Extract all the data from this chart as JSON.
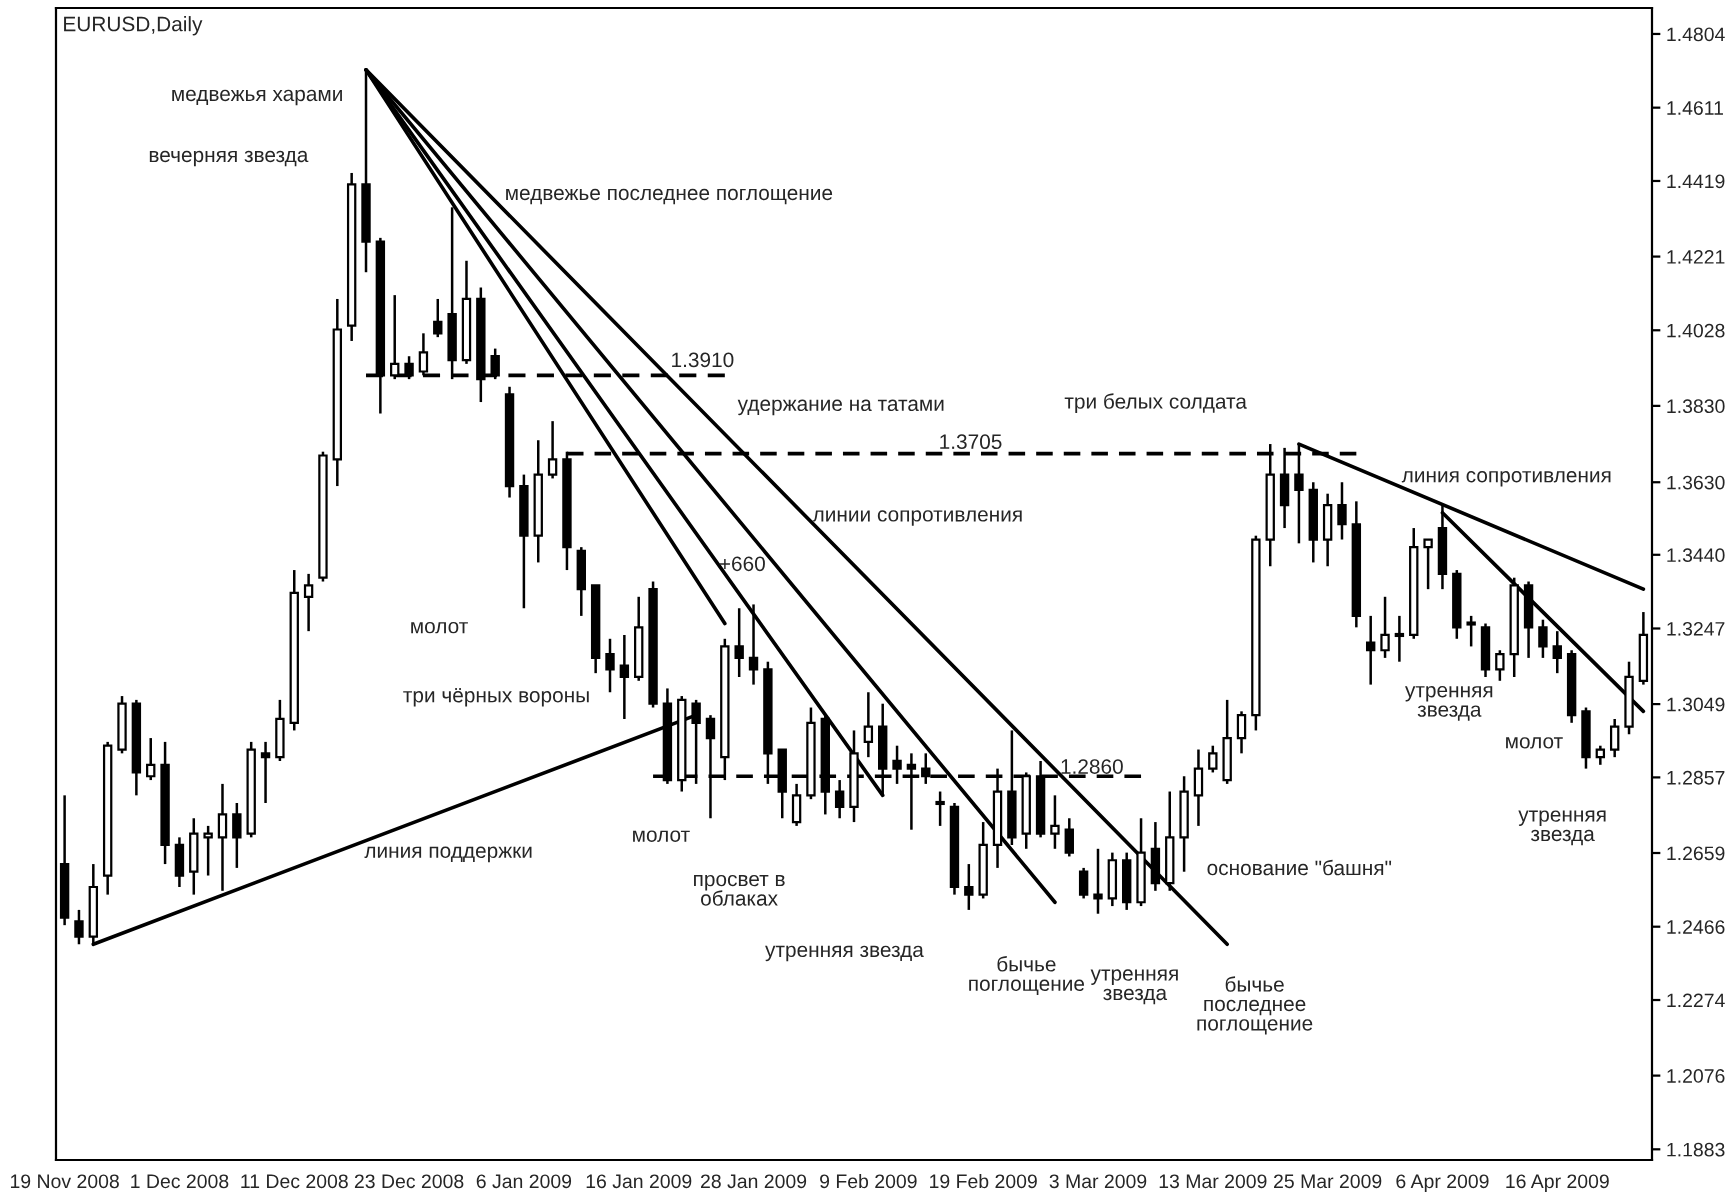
{
  "chart_data": {
    "type": "candlestick",
    "title": "EURUSD,Daily",
    "categories": [
      "19 Nov 2008",
      null,
      null,
      null,
      null,
      null,
      null,
      null,
      "1 Dec 2008",
      null,
      null,
      null,
      null,
      null,
      null,
      null,
      "11 Dec 2008",
      null,
      null,
      null,
      null,
      null,
      null,
      null,
      "23 Dec 2008",
      null,
      null,
      null,
      null,
      null,
      null,
      null,
      "6 Jan 2009",
      null,
      null,
      null,
      null,
      null,
      null,
      null,
      "16 Jan 2009",
      null,
      null,
      null,
      null,
      null,
      null,
      null,
      "28 Jan 2009",
      null,
      null,
      null,
      null,
      null,
      null,
      null,
      "9 Feb 2009",
      null,
      null,
      null,
      null,
      null,
      null,
      null,
      "19 Feb 2009",
      null,
      null,
      null,
      null,
      null,
      null,
      null,
      "3 Mar 2009",
      null,
      null,
      null,
      null,
      null,
      null,
      null,
      "13 Mar 2009",
      null,
      null,
      null,
      null,
      null,
      null,
      null,
      "25 Mar 2009",
      null,
      null,
      null,
      null,
      null,
      null,
      null,
      "6 Apr 2009",
      null,
      null,
      null,
      null,
      null,
      null,
      null,
      "16 Apr 2009",
      null,
      null,
      null,
      null,
      null,
      null
    ],
    "ohlc": [
      [
        1.263,
        1.281,
        1.247,
        1.249
      ],
      [
        1.248,
        1.251,
        1.242,
        1.244
      ],
      [
        1.244,
        1.263,
        1.242,
        1.257
      ],
      [
        1.26,
        1.295,
        1.255,
        1.294
      ],
      [
        1.293,
        1.307,
        1.292,
        1.305
      ],
      [
        1.305,
        1.306,
        1.281,
        1.287
      ],
      [
        1.286,
        1.296,
        1.285,
        1.289
      ],
      [
        1.289,
        1.295,
        1.263,
        1.268
      ],
      [
        1.268,
        1.27,
        1.257,
        1.26
      ],
      [
        1.261,
        1.275,
        1.255,
        1.271
      ],
      [
        1.27,
        1.273,
        1.26,
        1.271
      ],
      [
        1.27,
        1.284,
        1.256,
        1.276
      ],
      [
        1.276,
        1.279,
        1.262,
        1.27
      ],
      [
        1.271,
        1.295,
        1.27,
        1.293
      ],
      [
        1.292,
        1.295,
        1.279,
        1.291
      ],
      [
        1.291,
        1.306,
        1.29,
        1.301
      ],
      [
        1.3,
        1.34,
        1.298,
        1.334
      ],
      [
        1.333,
        1.339,
        1.324,
        1.336
      ],
      [
        1.338,
        1.371,
        1.337,
        1.37
      ],
      [
        1.369,
        1.411,
        1.362,
        1.403
      ],
      [
        1.404,
        1.444,
        1.4,
        1.441
      ],
      [
        1.441,
        1.471,
        1.418,
        1.426
      ],
      [
        1.426,
        1.427,
        1.381,
        1.391
      ],
      [
        1.391,
        1.412,
        1.39,
        1.394
      ],
      [
        1.394,
        1.396,
        1.39,
        1.391
      ],
      [
        1.392,
        1.402,
        1.391,
        1.397
      ],
      [
        1.405,
        1.411,
        1.401,
        1.402
      ],
      [
        1.407,
        1.435,
        1.39,
        1.395
      ],
      [
        1.395,
        1.421,
        1.394,
        1.411
      ],
      [
        1.411,
        1.414,
        1.384,
        1.39
      ],
      [
        1.396,
        1.398,
        1.39,
        1.391
      ],
      [
        1.386,
        1.388,
        1.359,
        1.362
      ],
      [
        1.362,
        1.365,
        1.33,
        1.349
      ],
      [
        1.349,
        1.374,
        1.342,
        1.365
      ],
      [
        1.365,
        1.379,
        1.364,
        1.369
      ],
      [
        1.369,
        1.371,
        1.34,
        1.346
      ],
      [
        1.345,
        1.346,
        1.328,
        1.335
      ],
      [
        1.336,
        1.336,
        1.313,
        1.317
      ],
      [
        1.318,
        1.322,
        1.308,
        1.314
      ],
      [
        1.315,
        1.323,
        1.301,
        1.312
      ],
      [
        1.312,
        1.333,
        1.311,
        1.325
      ],
      [
        1.335,
        1.337,
        1.304,
        1.305
      ],
      [
        1.305,
        1.309,
        1.284,
        1.285
      ],
      [
        1.285,
        1.307,
        1.282,
        1.306
      ],
      [
        1.305,
        1.306,
        1.284,
        1.3
      ],
      [
        1.301,
        1.302,
        1.275,
        1.296
      ],
      [
        1.291,
        1.322,
        1.285,
        1.32
      ],
      [
        1.32,
        1.33,
        1.312,
        1.317
      ],
      [
        1.317,
        1.331,
        1.31,
        1.314
      ],
      [
        1.314,
        1.316,
        1.284,
        1.292
      ],
      [
        1.293,
        1.293,
        1.275,
        1.282
      ],
      [
        1.274,
        1.284,
        1.273,
        1.281
      ],
      [
        1.281,
        1.304,
        1.28,
        1.3
      ],
      [
        1.301,
        1.302,
        1.276,
        1.282
      ],
      [
        1.282,
        1.285,
        1.275,
        1.278
      ],
      [
        1.278,
        1.298,
        1.274,
        1.292
      ],
      [
        1.295,
        1.308,
        1.291,
        1.299
      ],
      [
        1.299,
        1.305,
        1.281,
        1.288
      ],
      [
        1.29,
        1.294,
        1.284,
        1.288
      ],
      [
        1.289,
        1.292,
        1.272,
        1.288
      ],
      [
        1.288,
        1.292,
        1.284,
        1.286
      ],
      [
        1.279,
        1.282,
        1.273,
        1.279
      ],
      [
        1.278,
        1.279,
        1.255,
        1.257
      ],
      [
        1.257,
        1.263,
        1.251,
        1.255
      ],
      [
        1.255,
        1.274,
        1.254,
        1.268
      ],
      [
        1.268,
        1.288,
        1.262,
        1.282
      ],
      [
        1.282,
        1.298,
        1.268,
        1.27
      ],
      [
        1.271,
        1.287,
        1.267,
        1.286
      ],
      [
        1.286,
        1.29,
        1.27,
        1.271
      ],
      [
        1.271,
        1.281,
        1.267,
        1.273
      ],
      [
        1.272,
        1.275,
        1.265,
        1.266
      ],
      [
        1.261,
        1.262,
        1.254,
        1.255
      ],
      [
        1.255,
        1.267,
        1.25,
        1.254
      ],
      [
        1.254,
        1.266,
        1.252,
        1.264
      ],
      [
        1.264,
        1.266,
        1.251,
        1.253
      ],
      [
        1.253,
        1.275,
        1.252,
        1.266
      ],
      [
        1.267,
        1.274,
        1.256,
        1.258
      ],
      [
        1.258,
        1.282,
        1.256,
        1.27
      ],
      [
        1.27,
        1.286,
        1.261,
        1.282
      ],
      [
        1.281,
        1.293,
        1.273,
        1.288
      ],
      [
        1.288,
        1.294,
        1.287,
        1.292
      ],
      [
        1.285,
        1.306,
        1.284,
        1.296
      ],
      [
        1.296,
        1.303,
        1.292,
        1.302
      ],
      [
        1.302,
        1.349,
        1.298,
        1.348
      ],
      [
        1.348,
        1.373,
        1.341,
        1.365
      ],
      [
        1.365,
        1.372,
        1.351,
        1.357
      ],
      [
        1.365,
        1.373,
        1.347,
        1.361
      ],
      [
        1.361,
        1.363,
        1.342,
        1.348
      ],
      [
        1.348,
        1.36,
        1.341,
        1.357
      ],
      [
        1.357,
        1.363,
        1.348,
        1.352
      ],
      [
        1.352,
        1.358,
        1.325,
        1.328
      ],
      [
        1.321,
        1.328,
        1.31,
        1.319
      ],
      [
        1.319,
        1.333,
        1.317,
        1.323
      ],
      [
        1.323,
        1.328,
        1.316,
        1.323
      ],
      [
        1.323,
        1.351,
        1.322,
        1.346
      ],
      [
        1.346,
        1.348,
        1.335,
        1.348
      ],
      [
        1.351,
        1.357,
        1.335,
        1.339
      ],
      [
        1.339,
        1.34,
        1.322,
        1.325
      ],
      [
        1.326,
        1.328,
        1.32,
        1.326
      ],
      [
        1.325,
        1.326,
        1.312,
        1.314
      ],
      [
        1.314,
        1.319,
        1.311,
        1.318
      ],
      [
        1.318,
        1.338,
        1.312,
        1.336
      ],
      [
        1.336,
        1.337,
        1.317,
        1.325
      ],
      [
        1.325,
        1.327,
        1.317,
        1.32
      ],
      [
        1.32,
        1.324,
        1.313,
        1.317
      ],
      [
        1.318,
        1.319,
        1.3,
        1.302
      ],
      [
        1.303,
        1.304,
        1.288,
        1.291
      ],
      [
        1.291,
        1.294,
        1.289,
        1.293
      ],
      [
        1.293,
        1.301,
        1.291,
        1.299
      ],
      [
        1.299,
        1.316,
        1.297,
        1.312
      ],
      [
        1.311,
        1.329,
        1.31,
        1.323
      ]
    ],
    "series": [
      {
        "type": "line",
        "color": "#000000",
        "line_style": "solid",
        "values": [
          null,
          null,
          1.242,
          null,
          null,
          null,
          null,
          null,
          null,
          null,
          null,
          null,
          null,
          null,
          null,
          null,
          null,
          null,
          null,
          null,
          null,
          null,
          null,
          null,
          null,
          null,
          null,
          null,
          null,
          null,
          null,
          null,
          null,
          null,
          null,
          null,
          null,
          null,
          null,
          null,
          null,
          null,
          null,
          null,
          1.302,
          null,
          null,
          null,
          null,
          null,
          null,
          null,
          null,
          null,
          null,
          null,
          null,
          null,
          null,
          null,
          null,
          null,
          null,
          null,
          null,
          null,
          null,
          null,
          null,
          null,
          null,
          null,
          null,
          null,
          null,
          null,
          null,
          null,
          null,
          null,
          null,
          null,
          null,
          null,
          null,
          null,
          null,
          null,
          null,
          null,
          null,
          null,
          null,
          null,
          null,
          null,
          null,
          null,
          null,
          null,
          null,
          null,
          null,
          null,
          null,
          null,
          null,
          null,
          null,
          null,
          null
        ]
      },
      {
        "type": "line",
        "color": "#000000",
        "line_style": "solid",
        "values": [
          null,
          null,
          null,
          null,
          null,
          null,
          null,
          null,
          null,
          null,
          null,
          null,
          null,
          null,
          null,
          null,
          null,
          null,
          null,
          null,
          null,
          1.471,
          null,
          null,
          null,
          null,
          null,
          null,
          null,
          null,
          null,
          null,
          null,
          null,
          null,
          null,
          null,
          null,
          null,
          null,
          null,
          null,
          null,
          null,
          null,
          null,
          null,
          null,
          null,
          null,
          null,
          null,
          null,
          null,
          null,
          null,
          null,
          null,
          null,
          null,
          null,
          null,
          null,
          null,
          null,
          null,
          null,
          null,
          null,
          null,
          null,
          null,
          null,
          null,
          null,
          null,
          null,
          null,
          null,
          null,
          null,
          1.242,
          null,
          null,
          null,
          null,
          null,
          null,
          null,
          null,
          null,
          null,
          null,
          null,
          null,
          null,
          null,
          null,
          null,
          null,
          null,
          null,
          null,
          null,
          null,
          null,
          null,
          null,
          null,
          null,
          null
        ]
      },
      {
        "type": "line",
        "color": "#000000",
        "line_style": "solid",
        "values": [
          null,
          null,
          null,
          null,
          null,
          null,
          null,
          null,
          null,
          null,
          null,
          null,
          null,
          null,
          null,
          null,
          null,
          null,
          null,
          null,
          null,
          1.471,
          null,
          null,
          null,
          null,
          null,
          null,
          null,
          null,
          null,
          null,
          null,
          null,
          null,
          null,
          null,
          null,
          null,
          null,
          null,
          null,
          null,
          null,
          null,
          null,
          1.326,
          null,
          null,
          null,
          null,
          null,
          null,
          null,
          null,
          null,
          null,
          null,
          null,
          null,
          null,
          null,
          null,
          null,
          null,
          null,
          null,
          null,
          null,
          null,
          null,
          null,
          null,
          null,
          null,
          null,
          null,
          null,
          null,
          null,
          null,
          null,
          null,
          null,
          null,
          null,
          null,
          null,
          null,
          null,
          null,
          null,
          null,
          null,
          null,
          null,
          null,
          null,
          null,
          null,
          null,
          null,
          null,
          null,
          null,
          null,
          null,
          null,
          null,
          null,
          null
        ]
      },
      {
        "type": "line",
        "color": "#000000",
        "line_style": "solid",
        "values": [
          null,
          null,
          null,
          null,
          null,
          null,
          null,
          null,
          null,
          null,
          null,
          null,
          null,
          null,
          null,
          null,
          null,
          null,
          null,
          null,
          null,
          1.471,
          null,
          null,
          null,
          null,
          null,
          null,
          null,
          null,
          null,
          null,
          null,
          null,
          null,
          null,
          null,
          null,
          null,
          null,
          null,
          null,
          null,
          null,
          null,
          null,
          null,
          null,
          null,
          null,
          null,
          null,
          null,
          null,
          null,
          null,
          null,
          1.281,
          null,
          null,
          null,
          null,
          null,
          null,
          null,
          null,
          null,
          null,
          null,
          null,
          null,
          null,
          null,
          null,
          null,
          null,
          null,
          null,
          null,
          null,
          null,
          null,
          null,
          null,
          null,
          null,
          null,
          null,
          null,
          null,
          null,
          null,
          null,
          null,
          null,
          null,
          null,
          null,
          null,
          null,
          null,
          null,
          null,
          null,
          null,
          null,
          null,
          null,
          null,
          null,
          null
        ]
      },
      {
        "type": "line",
        "color": "#000000",
        "line_style": "solid",
        "values": [
          null,
          null,
          null,
          null,
          null,
          null,
          null,
          null,
          null,
          null,
          null,
          null,
          null,
          null,
          null,
          null,
          null,
          null,
          null,
          null,
          null,
          1.471,
          null,
          null,
          null,
          null,
          null,
          null,
          null,
          null,
          null,
          null,
          null,
          null,
          null,
          null,
          null,
          null,
          null,
          null,
          null,
          null,
          null,
          null,
          null,
          null,
          null,
          null,
          null,
          null,
          null,
          null,
          null,
          null,
          null,
          null,
          null,
          null,
          null,
          null,
          null,
          null,
          null,
          null,
          null,
          null,
          null,
          null,
          null,
          1.253,
          null,
          null,
          null,
          null,
          null,
          null,
          null,
          null,
          null,
          null,
          null,
          null,
          null,
          null,
          null,
          null,
          null,
          null,
          null,
          null,
          null,
          null,
          null,
          null,
          null,
          null,
          null,
          null,
          null,
          null,
          null,
          null,
          null,
          null,
          null,
          null,
          null,
          null,
          null,
          null,
          null
        ]
      },
      {
        "type": "line",
        "color": "#000000",
        "line_style": "solid",
        "values": [
          null,
          null,
          null,
          null,
          null,
          null,
          null,
          null,
          null,
          null,
          null,
          null,
          null,
          null,
          null,
          null,
          null,
          null,
          null,
          null,
          null,
          null,
          null,
          null,
          null,
          null,
          null,
          null,
          null,
          null,
          null,
          null,
          null,
          null,
          null,
          null,
          null,
          null,
          null,
          null,
          null,
          null,
          null,
          null,
          null,
          null,
          null,
          null,
          null,
          null,
          null,
          null,
          null,
          null,
          null,
          null,
          null,
          null,
          null,
          null,
          null,
          null,
          null,
          null,
          null,
          null,
          null,
          null,
          null,
          null,
          null,
          null,
          null,
          null,
          null,
          null,
          null,
          null,
          null,
          null,
          null,
          null,
          null,
          null,
          null,
          null,
          1.373,
          null,
          null,
          null,
          null,
          null,
          null,
          null,
          null,
          null,
          null,
          null,
          null,
          null,
          null,
          null,
          null,
          null,
          null,
          null,
          null,
          null,
          null,
          null,
          1.335
        ]
      },
      {
        "type": "line",
        "color": "#000000",
        "line_style": "solid",
        "values": [
          null,
          null,
          null,
          null,
          null,
          null,
          null,
          null,
          null,
          null,
          null,
          null,
          null,
          null,
          null,
          null,
          null,
          null,
          null,
          null,
          null,
          null,
          null,
          null,
          null,
          null,
          null,
          null,
          null,
          null,
          null,
          null,
          null,
          null,
          null,
          null,
          null,
          null,
          null,
          null,
          null,
          null,
          null,
          null,
          null,
          null,
          null,
          null,
          null,
          null,
          null,
          null,
          null,
          null,
          null,
          null,
          null,
          null,
          null,
          null,
          null,
          null,
          null,
          null,
          null,
          null,
          null,
          null,
          null,
          null,
          null,
          null,
          null,
          null,
          null,
          null,
          null,
          null,
          null,
          null,
          null,
          null,
          null,
          null,
          null,
          null,
          null,
          null,
          null,
          null,
          null,
          null,
          null,
          null,
          null,
          null,
          1.355,
          null,
          null,
          null,
          null,
          null,
          null,
          null,
          null,
          null,
          null,
          null,
          null,
          null,
          1.303
        ]
      },
      {
        "type": "line",
        "color": "#000000",
        "line_style": "dashed",
        "values": [
          null,
          null,
          null,
          null,
          null,
          null,
          null,
          null,
          null,
          null,
          null,
          null,
          null,
          null,
          null,
          null,
          null,
          null,
          null,
          null,
          null,
          1.391,
          null,
          null,
          null,
          null,
          null,
          null,
          null,
          null,
          null,
          null,
          null,
          null,
          null,
          null,
          null,
          null,
          null,
          null,
          null,
          null,
          null,
          null,
          null,
          null,
          1.391,
          null,
          null,
          null,
          null,
          null,
          null,
          null,
          null,
          null,
          null,
          null,
          null,
          null,
          null,
          null,
          null,
          null,
          null,
          null,
          null,
          null,
          null,
          null,
          null,
          null,
          null,
          null,
          null,
          null,
          null,
          null,
          null,
          null,
          null,
          null,
          null,
          null,
          null,
          null,
          null,
          null,
          null,
          null,
          null,
          null,
          null,
          null,
          null,
          null,
          null,
          null,
          null,
          null,
          null,
          null,
          null,
          null,
          null,
          null,
          null,
          null,
          null,
          null,
          null
        ]
      },
      {
        "type": "line",
        "color": "#000000",
        "line_style": "dashed",
        "values": [
          null,
          null,
          null,
          null,
          null,
          null,
          null,
          null,
          null,
          null,
          null,
          null,
          null,
          null,
          null,
          null,
          null,
          null,
          null,
          null,
          null,
          null,
          null,
          null,
          null,
          null,
          null,
          null,
          null,
          null,
          null,
          null,
          null,
          null,
          null,
          1.3705,
          null,
          null,
          null,
          null,
          null,
          null,
          null,
          null,
          null,
          null,
          null,
          null,
          null,
          null,
          null,
          null,
          null,
          null,
          null,
          null,
          null,
          null,
          null,
          null,
          null,
          null,
          null,
          null,
          null,
          null,
          null,
          null,
          null,
          null,
          null,
          null,
          null,
          null,
          null,
          null,
          null,
          null,
          null,
          null,
          null,
          null,
          null,
          null,
          null,
          null,
          null,
          null,
          null,
          null,
          1.3705,
          null,
          null,
          null,
          null,
          null,
          null,
          null,
          null,
          null,
          null,
          null,
          null,
          null,
          null,
          null,
          null,
          null,
          null,
          null,
          null
        ]
      },
      {
        "type": "line",
        "color": "#000000",
        "line_style": "dashed",
        "values": [
          null,
          null,
          null,
          null,
          null,
          null,
          null,
          null,
          null,
          null,
          null,
          null,
          null,
          null,
          null,
          null,
          null,
          null,
          null,
          null,
          null,
          null,
          null,
          null,
          null,
          null,
          null,
          null,
          null,
          null,
          null,
          null,
          null,
          null,
          null,
          null,
          null,
          null,
          null,
          null,
          null,
          1.286,
          null,
          null,
          null,
          null,
          null,
          null,
          null,
          null,
          null,
          null,
          null,
          null,
          null,
          null,
          null,
          null,
          null,
          null,
          null,
          null,
          null,
          null,
          null,
          null,
          null,
          null,
          null,
          null,
          null,
          null,
          null,
          null,
          null,
          1.286,
          null,
          null,
          null,
          null,
          null,
          null,
          null,
          null,
          null,
          null,
          null,
          null,
          null,
          null,
          null,
          null,
          null,
          null,
          null,
          null,
          null,
          null,
          null,
          null,
          null,
          null,
          null,
          null,
          null,
          null,
          null,
          null,
          null,
          null,
          null
        ]
      }
    ],
    "annotations": [
      "медвежья харами",
      "вечерняя звезда",
      "медвежье последнее поглощение",
      "1.3910",
      "удержание на татами",
      "три белых солдата",
      "1.3705",
      "линии сопротивления",
      "линия сопротивления",
      "+660",
      "молот",
      "три чёрных вороны",
      "линия поддержки",
      "молот",
      "просвет в\nоблаках",
      "утренняя звезда",
      "бычье\nпоглощение",
      "утренняя\nзвезда",
      "бычье\nпоследнее\nпоглощение",
      "основание \"башня\"",
      "1.2860",
      "утренняя\nзвезда",
      "молот",
      "утренняя\nзвезда"
    ],
    "ylim": [
      1.1855,
      1.4872
    ],
    "yticks": [
      1.4804,
      1.4611,
      1.4419,
      1.4221,
      1.4028,
      {
        "value": 1.383,
        "label": "1.3830"
      },
      {
        "value": 1.363,
        "label": "1.3630"
      },
      {
        "value": 1.344,
        "label": "1.3440"
      },
      1.3247,
      1.3049,
      1.2857,
      1.2659,
      1.2466,
      1.2274,
      1.2076,
      1.1883
    ]
  }
}
